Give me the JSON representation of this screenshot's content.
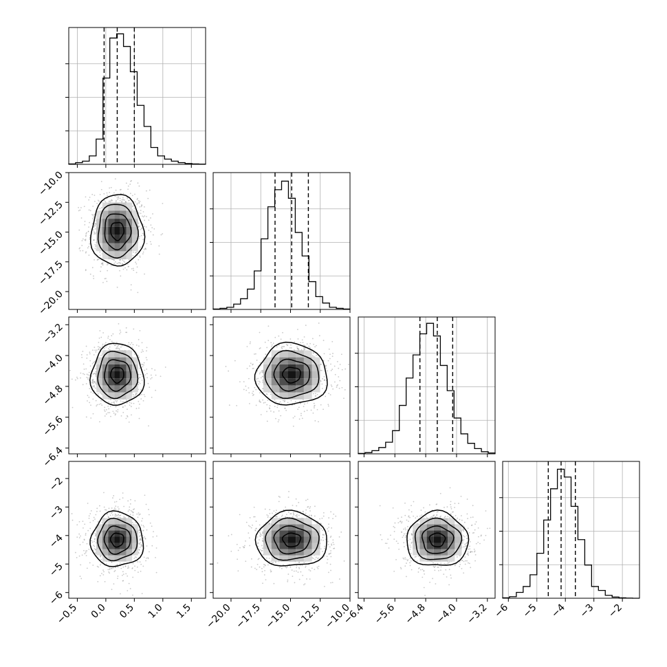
{
  "chart_data": {
    "type": "corner",
    "title": "",
    "grid": true,
    "colors": {
      "line": "#000000",
      "scatter": "#9a9a9a",
      "density": "#000000",
      "grid": "#b0b0b0"
    },
    "params": [
      {
        "ticks": [
          -0.5,
          0.0,
          0.5,
          1.0,
          1.5
        ],
        "tick_labels": [
          "−0.5",
          "0.0",
          "0.5",
          "1.0",
          "1.5"
        ],
        "range": [
          -0.65,
          1.75
        ],
        "mean": 0.2,
        "std": 0.23,
        "quantiles": [
          -0.03,
          0.2,
          0.5
        ]
      },
      {
        "ticks": [
          -20.0,
          -17.5,
          -15.0,
          -12.5,
          -10.0
        ],
        "tick_labels": [
          "−20.0",
          "−17.5",
          "−15.0",
          "−12.5",
          "−10.0"
        ],
        "range": [
          -21.5,
          -10.0
        ],
        "mean": -14.9,
        "std": 1.5,
        "quantiles": [
          -16.3,
          -14.9,
          -13.5
        ]
      },
      {
        "ticks": [
          -6.4,
          -5.6,
          -4.8,
          -4.0,
          -3.2
        ],
        "tick_labels": [
          "−6.4",
          "−5.6",
          "−4.8",
          "−4.0",
          "−3.2"
        ],
        "range": [
          -6.55,
          -3.0
        ],
        "mean": -4.5,
        "std": 0.4,
        "quantiles": [
          -4.95,
          -4.5,
          -4.1
        ]
      },
      {
        "ticks": [
          -6,
          -5,
          -4,
          -3,
          -2
        ],
        "tick_labels": [
          "−6",
          "−5",
          "−4",
          "−3",
          "−2"
        ],
        "range": [
          -6.2,
          -1.4
        ],
        "mean": -4.15,
        "std": 0.48,
        "quantiles": [
          -4.6,
          -4.15,
          -3.65
        ]
      }
    ],
    "histograms": [
      {
        "param": 0,
        "edges_start": -0.65,
        "bin_width": 0.12,
        "counts": [
          2,
          8,
          15,
          40,
          120,
          410,
          600,
          620,
          560,
          440,
          280,
          180,
          80,
          40,
          25,
          15,
          8,
          4,
          2,
          1
        ],
        "ymax_counts": 650
      },
      {
        "param": 1,
        "edges_start": -21.5,
        "bin_width": 0.575,
        "counts": [
          2,
          5,
          10,
          25,
          50,
          95,
          180,
          330,
          480,
          560,
          600,
          520,
          360,
          250,
          130,
          60,
          30,
          10,
          5,
          2
        ],
        "ymax_counts": 640
      },
      {
        "param": 2,
        "edges_start": -6.55,
        "bin_width": 0.1775,
        "counts": [
          2,
          6,
          15,
          30,
          55,
          110,
          230,
          360,
          470,
          570,
          620,
          560,
          420,
          300,
          170,
          95,
          50,
          25,
          10,
          4
        ],
        "ymax_counts": 650
      },
      {
        "param": 3,
        "edges_start": -6.2,
        "bin_width": 0.24,
        "counts": [
          2,
          8,
          30,
          60,
          120,
          230,
          400,
          560,
          660,
          620,
          470,
          300,
          170,
          60,
          40,
          15,
          6,
          2,
          1,
          0
        ],
        "ymax_counts": 700
      }
    ],
    "pairs": [
      {
        "x": 0,
        "y": 1
      },
      {
        "x": 0,
        "y": 2
      },
      {
        "x": 1,
        "y": 2
      },
      {
        "x": 0,
        "y": 3
      },
      {
        "x": 1,
        "y": 3
      },
      {
        "x": 2,
        "y": 3
      }
    ],
    "n_scatter_points": 900,
    "contour_sigma_levels": [
      0.5,
      1.0,
      1.5,
      2.0
    ]
  }
}
